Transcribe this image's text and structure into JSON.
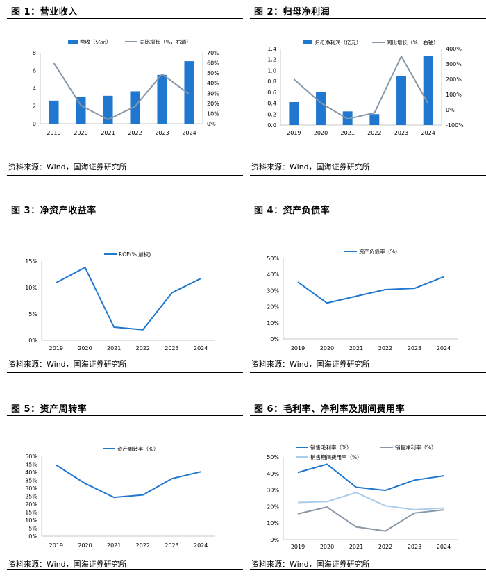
{
  "source_text": "资料来源：Wind，国海证券研究所",
  "colors": {
    "blue": "#1F77D0",
    "gray": "#8797A8",
    "lightblue": "#A9CDEB"
  },
  "panels": [
    {
      "title": "图 1：营业收入",
      "chart_data": {
        "type": "bar+line",
        "categories": [
          "2019",
          "2020",
          "2021",
          "2022",
          "2023",
          "2024"
        ],
        "series": [
          {
            "name": "营收（亿元）",
            "kind": "bar",
            "axis": "left",
            "values": [
              2.6,
              3.05,
              3.15,
              3.65,
              5.5,
              7.05
            ]
          },
          {
            "name": "同比增长（%，右轴）",
            "kind": "line",
            "axis": "right",
            "values": [
              60,
              18,
              4,
              17,
              49,
              29
            ]
          }
        ],
        "yleft": {
          "ticks": [
            "0",
            "2",
            "4",
            "6",
            "8"
          ],
          "lim": [
            0,
            8
          ]
        },
        "yright": {
          "ticks": [
            "0%",
            "10%",
            "20%",
            "30%",
            "40%",
            "50%",
            "60%",
            "70%"
          ],
          "lim": [
            0,
            70
          ]
        }
      }
    },
    {
      "title": "图 2：归母净利润",
      "chart_data": {
        "type": "bar+line",
        "categories": [
          "2019",
          "2020",
          "2021",
          "2022",
          "2023",
          "2024"
        ],
        "series": [
          {
            "name": "归母净利润（亿元）",
            "kind": "bar",
            "axis": "left",
            "values": [
              0.42,
              0.6,
              0.25,
              0.2,
              0.9,
              1.27
            ]
          },
          {
            "name": "同比增长（%，右轴）",
            "kind": "line",
            "axis": "right",
            "values": [
              200,
              45,
              -60,
              -20,
              350,
              40
            ]
          }
        ],
        "yleft": {
          "ticks": [
            "0.0",
            "0.2",
            "0.4",
            "0.6",
            "0.8",
            "1.0",
            "1.2",
            "1.4"
          ],
          "lim": [
            0,
            1.4
          ]
        },
        "yright": {
          "ticks": [
            "-100%",
            "0%",
            "100%",
            "200%",
            "300%",
            "400%"
          ],
          "lim": [
            -100,
            400
          ]
        }
      }
    },
    {
      "title": "图 3：净资产收益率",
      "chart_data": {
        "type": "line",
        "categories": [
          "2019",
          "2020",
          "2021",
          "2022",
          "2023",
          "2024"
        ],
        "series": [
          {
            "name": "ROE(%,加权)",
            "kind": "line",
            "values": [
              10.9,
              13.8,
              2.5,
              2.0,
              9.0,
              11.7
            ]
          }
        ],
        "yleft": {
          "ticks": [
            "0%",
            "5%",
            "10%",
            "15%"
          ],
          "lim": [
            0,
            15
          ]
        }
      }
    },
    {
      "title": "图 4：资产负债率",
      "chart_data": {
        "type": "line",
        "categories": [
          "2019",
          "2020",
          "2021",
          "2022",
          "2023",
          "2024"
        ],
        "series": [
          {
            "name": "资产负债率（%）",
            "kind": "line",
            "values": [
              35.3,
              22.3,
              26.5,
              30.6,
              31.4,
              38.5
            ]
          }
        ],
        "yleft": {
          "ticks": [
            "0%",
            "10%",
            "20%",
            "30%",
            "40%",
            "50%"
          ],
          "lim": [
            0,
            50
          ]
        }
      }
    },
    {
      "title": "图 5：资产周转率",
      "chart_data": {
        "type": "line",
        "categories": [
          "2019",
          "2020",
          "2021",
          "2022",
          "2023",
          "2024"
        ],
        "series": [
          {
            "name": "资产周转率（%）",
            "kind": "line",
            "values": [
              44.5,
              33,
              24.3,
              25.8,
              36,
              40.3
            ]
          }
        ],
        "yleft": {
          "ticks": [
            "0%",
            "5%",
            "10%",
            "15%",
            "20%",
            "25%",
            "30%",
            "35%",
            "40%",
            "45%",
            "50%"
          ],
          "lim": [
            0,
            50
          ]
        }
      }
    },
    {
      "title": "图 6：毛利率、净利率及期间费用率",
      "chart_data": {
        "type": "line",
        "categories": [
          "2019",
          "2020",
          "2021",
          "2022",
          "2023",
          "2024"
        ],
        "series": [
          {
            "name": "销售毛利率（%）",
            "kind": "line",
            "values": [
              40.6,
              45.6,
              31.7,
              29.8,
              36,
              38.6
            ]
          },
          {
            "name": "销售净利率（%）",
            "kind": "line",
            "values": [
              15.6,
              19.7,
              7.7,
              5.2,
              16.1,
              18
            ]
          },
          {
            "name": "销售期间费用率（%）",
            "kind": "line",
            "values": [
              22.5,
              23,
              28.5,
              20.5,
              18.1,
              19.1
            ]
          }
        ],
        "yleft": {
          "ticks": [
            "0%",
            "10%",
            "20%",
            "30%",
            "40%",
            "50%"
          ],
          "lim": [
            0,
            50
          ]
        }
      }
    }
  ]
}
